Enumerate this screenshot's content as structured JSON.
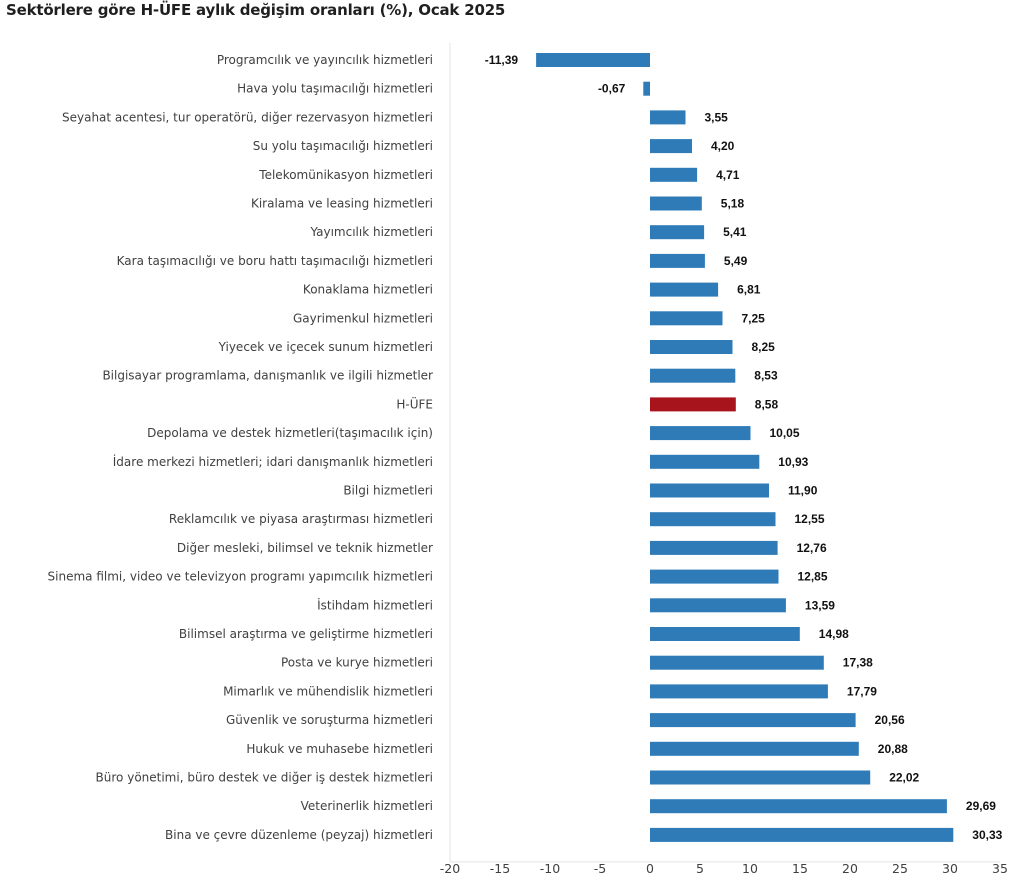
{
  "chart_data": {
    "type": "bar",
    "orientation": "horizontal",
    "title": "Sektörlere göre H-ÜFE aylık değişim oranları (%), Ocak 2025",
    "xlabel": "",
    "ylabel": "",
    "xlim": [
      -20,
      35
    ],
    "xticks": [
      -20,
      -15,
      -10,
      -5,
      0,
      5,
      10,
      15,
      20,
      25,
      30,
      35
    ],
    "grid": false,
    "legend": "none",
    "colors": {
      "default": "#2e7bb8",
      "highlight": "#a8141c"
    },
    "categories": [
      "Programcılık ve yayıncılık hizmetleri",
      "Hava yolu taşımacılığı hizmetleri",
      "Seyahat acentesi, tur operatörü, diğer rezervasyon hizmetleri",
      "Su yolu taşımacılığı hizmetleri",
      "Telekomünikasyon hizmetleri",
      "Kiralama ve leasing hizmetleri",
      "Yayımcılık hizmetleri",
      "Kara taşımacılığı ve boru hattı taşımacılığı hizmetleri",
      "Konaklama hizmetleri",
      "Gayrimenkul hizmetleri",
      "Yiyecek ve içecek sunum hizmetleri",
      "Bilgisayar programlama, danışmanlık ve ilgili hizmetler",
      "H-ÜFE",
      "Depolama ve destek hizmetleri(taşımacılık için)",
      "İdare merkezi hizmetleri; idari danışmanlık hizmetleri",
      "Bilgi hizmetleri",
      "Reklamcılık ve piyasa araştırması hizmetleri",
      "Diğer mesleki, bilimsel ve teknik hizmetler",
      "Sinema filmi, video ve televizyon programı yapımcılık hizmetleri",
      "İstihdam hizmetleri",
      "Bilimsel araştırma ve geliştirme hizmetleri",
      "Posta ve kurye hizmetleri",
      "Mimarlık ve mühendislik hizmetleri",
      "Güvenlik ve soruşturma hizmetleri",
      "Hukuk ve muhasebe hizmetleri",
      "Büro yönetimi, büro destek ve diğer iş destek hizmetleri",
      "Veterinerlik hizmetleri",
      "Bina ve çevre düzenleme (peyzaj) hizmetleri"
    ],
    "values": [
      -11.39,
      -0.67,
      3.55,
      4.2,
      4.71,
      5.18,
      5.41,
      5.49,
      6.81,
      7.25,
      8.25,
      8.53,
      8.58,
      10.05,
      10.93,
      11.9,
      12.55,
      12.76,
      12.85,
      13.59,
      14.98,
      17.38,
      17.79,
      20.56,
      20.88,
      22.02,
      29.69,
      30.33
    ],
    "value_labels": [
      "-11,39",
      "-0,67",
      "3,55",
      "4,20",
      "4,71",
      "5,18",
      "5,41",
      "5,49",
      "6,81",
      "7,25",
      "8,25",
      "8,53",
      "8,58",
      "10,05",
      "10,93",
      "11,90",
      "12,55",
      "12,76",
      "12,85",
      "13,59",
      "14,98",
      "17,38",
      "17,79",
      "20,56",
      "20,88",
      "22,02",
      "29,69",
      "30,33"
    ],
    "highlight_category": "H-ÜFE"
  }
}
